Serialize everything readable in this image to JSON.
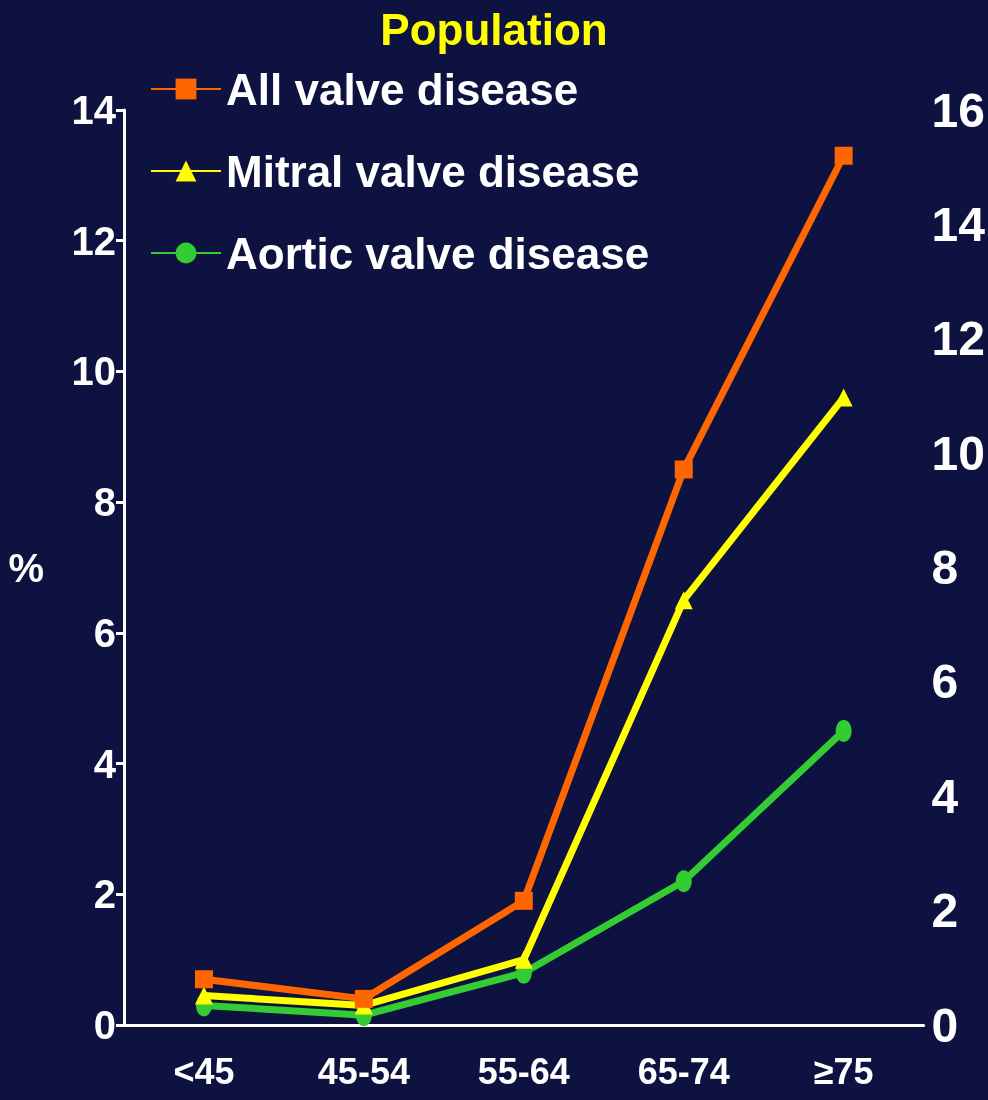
{
  "chart_data": {
    "type": "line",
    "title": "Population",
    "ylabel": "%",
    "categories": [
      "<45",
      "45-54",
      "55-64",
      "65-74",
      "≥75"
    ],
    "series": [
      {
        "name": "All valve disease",
        "color": "#ff6600",
        "marker": "square",
        "values": [
          0.7,
          0.4,
          1.9,
          8.5,
          13.3
        ]
      },
      {
        "name": "Mitral valve disease",
        "color": "#ffff00",
        "marker": "triangle",
        "values": [
          0.45,
          0.3,
          1.0,
          6.5,
          9.6
        ]
      },
      {
        "name": "Aortic valve disease",
        "color": "#33cc33",
        "marker": "circle",
        "values": [
          0.3,
          0.15,
          0.8,
          2.2,
          4.5
        ]
      }
    ],
    "ylim": [
      0,
      14
    ],
    "yticks": [
      0,
      2,
      4,
      6,
      8,
      10,
      12,
      14
    ],
    "y2lim": [
      0,
      16
    ],
    "y2ticks": [
      0,
      2,
      4,
      6,
      8,
      10,
      12,
      14,
      16
    ],
    "legend": "top left",
    "grid": false
  }
}
